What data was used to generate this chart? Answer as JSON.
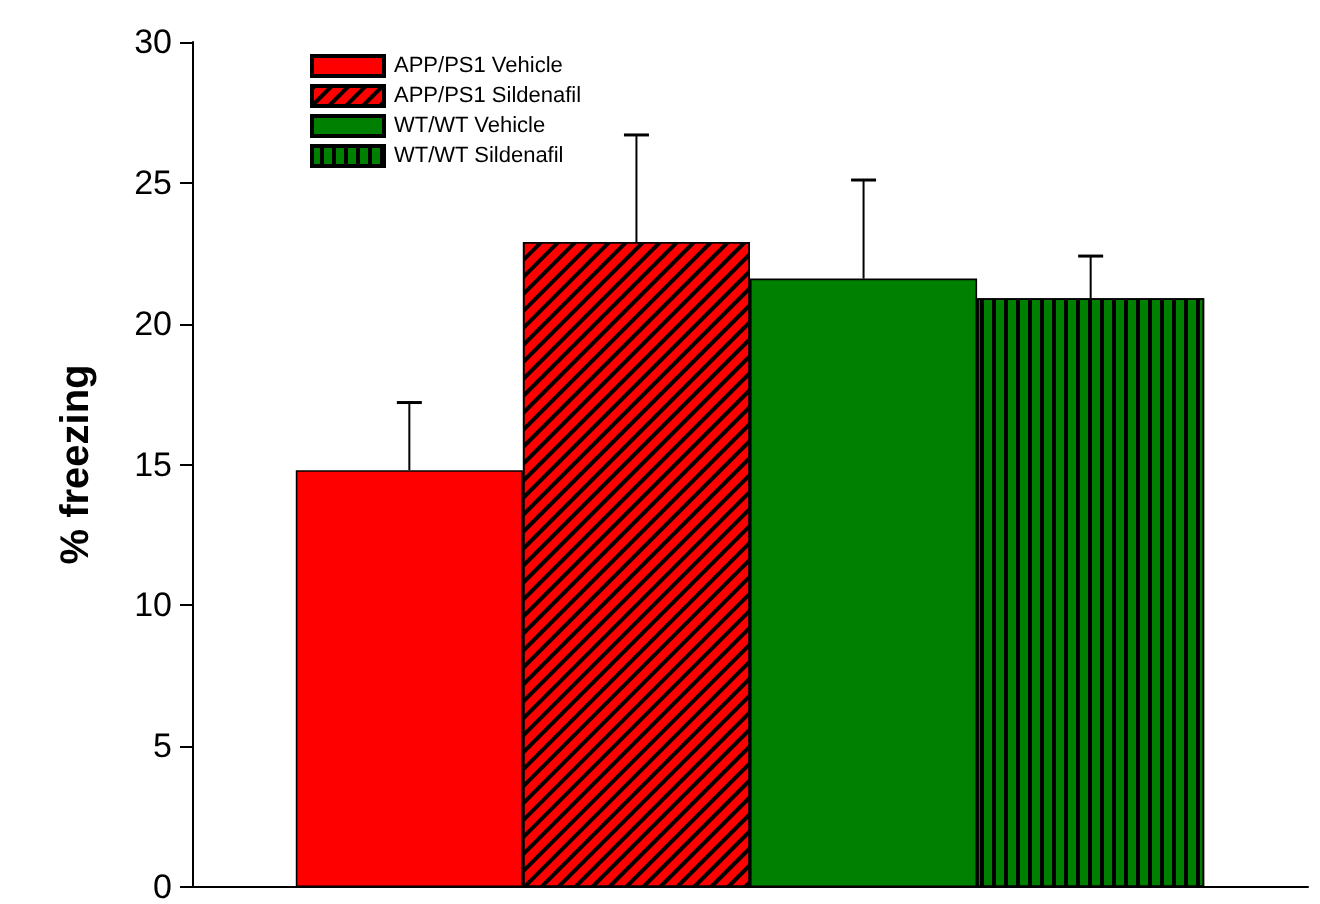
{
  "chart_data": {
    "type": "bar",
    "ylabel": "% freezing",
    "categories": [
      null
    ],
    "series": [
      {
        "name": "APP/PS1 Vehicle",
        "color": "#ff0000",
        "values": [
          14.8
        ],
        "errors": [
          [
            14.8,
            17.2
          ]
        ]
      },
      {
        "name": "APP/PS1 Sildenafil",
        "color": "#ff0000",
        "values": [
          22.9
        ],
        "errors": [
          [
            22.9,
            26.7
          ]
        ]
      },
      {
        "name": "WT/WT Vehicle",
        "color": "#008000",
        "values": [
          21.6
        ],
        "errors": [
          [
            21.6,
            25.1
          ]
        ]
      },
      {
        "name": "WT/WT Sildenafil",
        "color": "#008000",
        "values": [
          20.9
        ],
        "errors": [
          [
            20.9,
            22.4
          ]
        ]
      }
    ],
    "ylim": [
      0,
      30
    ],
    "yticks": [
      0,
      5,
      10,
      15,
      20,
      25,
      30
    ],
    "grid": false,
    "legend": "top left"
  }
}
